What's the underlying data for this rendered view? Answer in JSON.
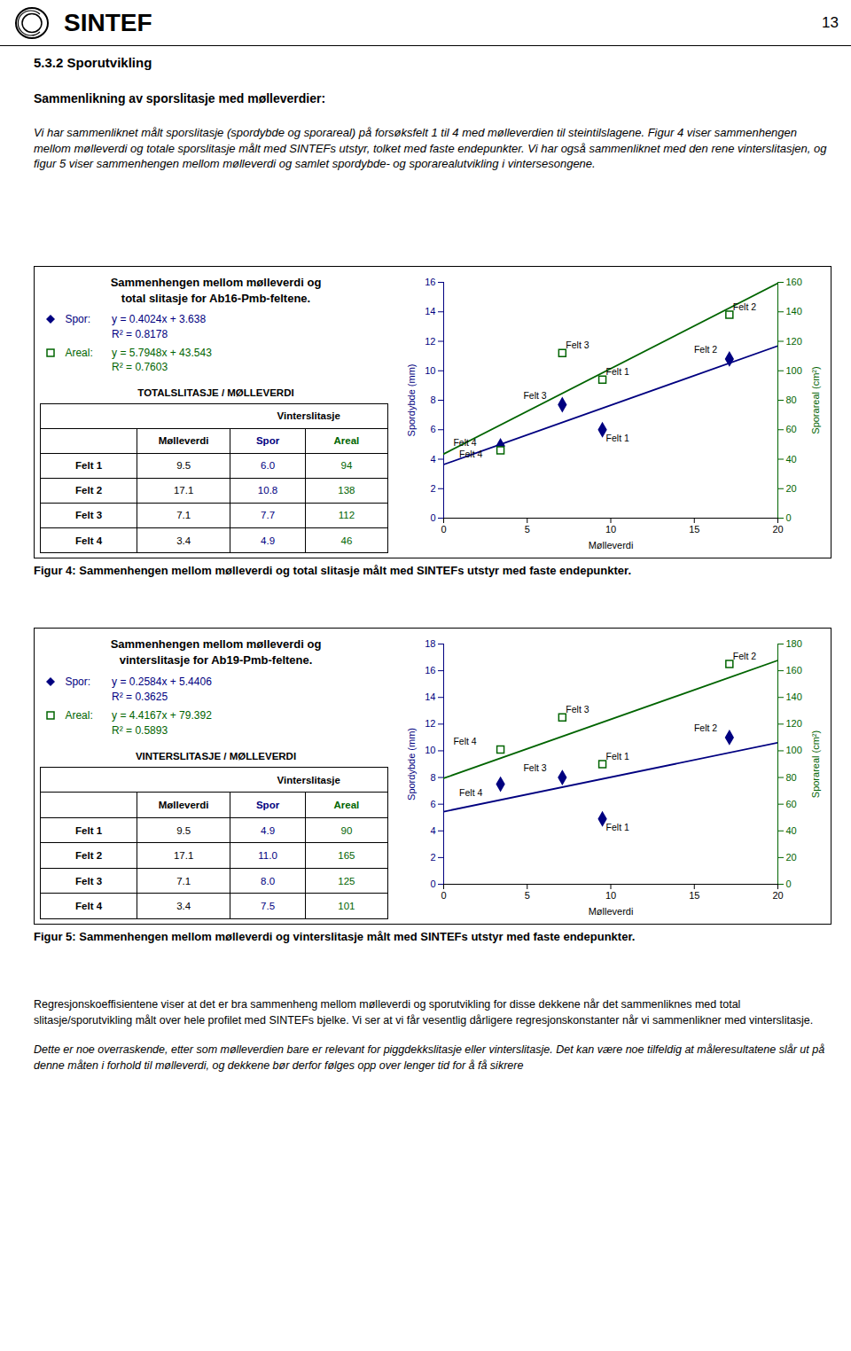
{
  "logo_text": "SINTEF",
  "page_num": "13",
  "section_title": "5.3.2  Sporutvikling",
  "bold_title": "Sammenlikning av sporslitasje med mølleverdier:",
  "intro": "Vi har sammenliknet målt sporslitasje (spordybde og sporareal) på forsøksfelt 1 til 4 med mølleverdien til steintilslagene. Figur 4 viser sammenhengen mellom mølleverdi og totale sporslitasje målt med SINTEFs utstyr, tolket med faste endepunkter. Vi har også sammenliknet med den rene vinterslitasjen, og figur 5 viser sammenhengen mellom mølleverdi og samlet spordybde- og sporarealutvikling i vintersesongene.",
  "chart_data": [
    {
      "type": "scatter",
      "title": [
        "Sammenhengen mellom mølleverdi og",
        "total slitasje for Ab16-Pmb-feltene."
      ],
      "series": [
        {
          "type": "line",
          "axis": "y",
          "color": "#000080",
          "x": [
            0,
            20
          ],
          "values": [
            3.638,
            11.686
          ]
        },
        {
          "type": "line",
          "axis": "y2",
          "color": "#006400",
          "x": [
            0,
            20
          ],
          "values": [
            43.543,
            159.439
          ]
        },
        {
          "name": "Spor:",
          "type": "scatter",
          "axis": "y",
          "marker": "diamond",
          "color": "#000080",
          "x": [
            9.5,
            17.1,
            7.1,
            3.4
          ],
          "values": [
            6.0,
            10.8,
            7.7,
            4.9
          ],
          "labels": [
            "Felt 1",
            "Felt 2",
            "Felt 3",
            "Felt 4"
          ],
          "annotations": [
            "y = 0.4024x + 3.638",
            "R² = 0.8178"
          ]
        },
        {
          "name": "Areal:",
          "type": "scatter",
          "axis": "y2",
          "marker": "square",
          "color": "#006400",
          "x": [
            9.5,
            17.1,
            7.1,
            3.4
          ],
          "values": [
            94,
            138,
            112,
            46
          ],
          "labels": [
            "Felt 1",
            "Felt 2",
            "Felt 3",
            "Felt 4"
          ],
          "annotations": [
            "y = 5.7948x + 43.543",
            "R² = 0.7603"
          ]
        }
      ],
      "xlabel": "Mølleverdi",
      "ylabel": "Spordybde (mm)",
      "y2label": "Sporareal (cm²)",
      "xlim": [
        0,
        20
      ],
      "ylim": [
        0,
        16
      ],
      "y2lim": [
        0,
        160
      ],
      "xticks": [
        0,
        5,
        10,
        15,
        20
      ],
      "yticks": [
        0,
        2,
        4,
        6,
        8,
        10,
        12,
        14,
        16
      ],
      "y2ticks": [
        0,
        20,
        40,
        60,
        80,
        100,
        120,
        140,
        160
      ],
      "grid": false,
      "table": {
        "title": "TOTALSLITASJE / MØLLEVERDI",
        "group_header": "Vinterslitasje",
        "columns": [
          "Mølleverdi",
          "Spor",
          "Areal"
        ],
        "rows": [
          [
            "Felt 1",
            "9.5",
            "6.0",
            "94"
          ],
          [
            "Felt 2",
            "17.1",
            "10.8",
            "138"
          ],
          [
            "Felt 3",
            "7.1",
            "7.7",
            "112"
          ],
          [
            "Felt 4",
            "3.4",
            "4.9",
            "46"
          ]
        ]
      },
      "caption": "Figur 4: Sammenhengen mellom mølleverdi og total slitasje målt med SINTEFs utstyr med faste endepunkter."
    },
    {
      "type": "scatter",
      "title": [
        "Sammenhengen mellom mølleverdi og",
        "vinterslitasje for Ab19-Pmb-feltene."
      ],
      "series": [
        {
          "type": "line",
          "axis": "y",
          "color": "#000080",
          "x": [
            0,
            20
          ],
          "values": [
            5.4406,
            10.6086
          ]
        },
        {
          "type": "line",
          "axis": "y2",
          "color": "#006400",
          "x": [
            0,
            20
          ],
          "values": [
            79.392,
            167.726
          ]
        },
        {
          "name": "Spor:",
          "type": "scatter",
          "axis": "y",
          "marker": "diamond",
          "color": "#000080",
          "x": [
            9.5,
            17.1,
            7.1,
            3.4
          ],
          "values": [
            4.9,
            11.0,
            8.0,
            7.5
          ],
          "labels": [
            "Felt 1",
            "Felt 2",
            "Felt 3",
            "Felt 4"
          ],
          "annotations": [
            "y = 0.2584x + 5.4406",
            "R² = 0.3625"
          ]
        },
        {
          "name": "Areal:",
          "type": "scatter",
          "axis": "y2",
          "marker": "square",
          "color": "#006400",
          "x": [
            9.5,
            17.1,
            7.1,
            3.4
          ],
          "values": [
            90,
            165,
            125,
            101
          ],
          "labels": [
            "Felt 1",
            "Felt 2",
            "Felt 3",
            "Felt 4"
          ],
          "annotations": [
            "y = 4.4167x + 79.392",
            "R² = 0.5893"
          ]
        }
      ],
      "xlabel": "Mølleverdi",
      "ylabel": "Spordybde (mm)",
      "y2label": "Sporareal (cm²)",
      "xlim": [
        0,
        20
      ],
      "ylim": [
        0,
        18
      ],
      "y2lim": [
        0,
        180
      ],
      "xticks": [
        0,
        5,
        10,
        15,
        20
      ],
      "yticks": [
        0,
        2,
        4,
        6,
        8,
        10,
        12,
        14,
        16,
        18
      ],
      "y2ticks": [
        0,
        20,
        40,
        60,
        80,
        100,
        120,
        140,
        160,
        180
      ],
      "grid": false,
      "table": {
        "title": "VINTERSLITASJE / MØLLEVERDI",
        "group_header": "Vinterslitasje",
        "columns": [
          "Mølleverdi",
          "Spor",
          "Areal"
        ],
        "rows": [
          [
            "Felt 1",
            "9.5",
            "4.9",
            "90"
          ],
          [
            "Felt 2",
            "17.1",
            "11.0",
            "165"
          ],
          [
            "Felt 3",
            "7.1",
            "8.0",
            "125"
          ],
          [
            "Felt 4",
            "3.4",
            "7.5",
            "101"
          ]
        ]
      },
      "caption": "Figur 5: Sammenhengen mellom mølleverdi og vinterslitasje målt med SINTEFs utstyr med faste endepunkter."
    }
  ],
  "footer_normal": "Regresjonskoeffisientene viser at det er bra sammenheng mellom mølleverdi og sporutvikling for disse dekkene når det sammenliknes med total slitasje/sporutvikling målt over hele profilet med SINTEFs bjelke. Vi ser at vi får vesentlig dårligere regresjonskonstan­ter når vi sammenlikner med vinterslitasje.",
  "footer_italic": "Dette er noe overraskende, etter som mølleverdien bare er relevant for piggdekkslitasje eller vinterslitasje. Det kan være noe tilfeldig at måleresultatene slår ut på denne måten i forhold til mølleverdi, og dekkene bør derfor følges opp over lenger tid for å få sikrere"
}
